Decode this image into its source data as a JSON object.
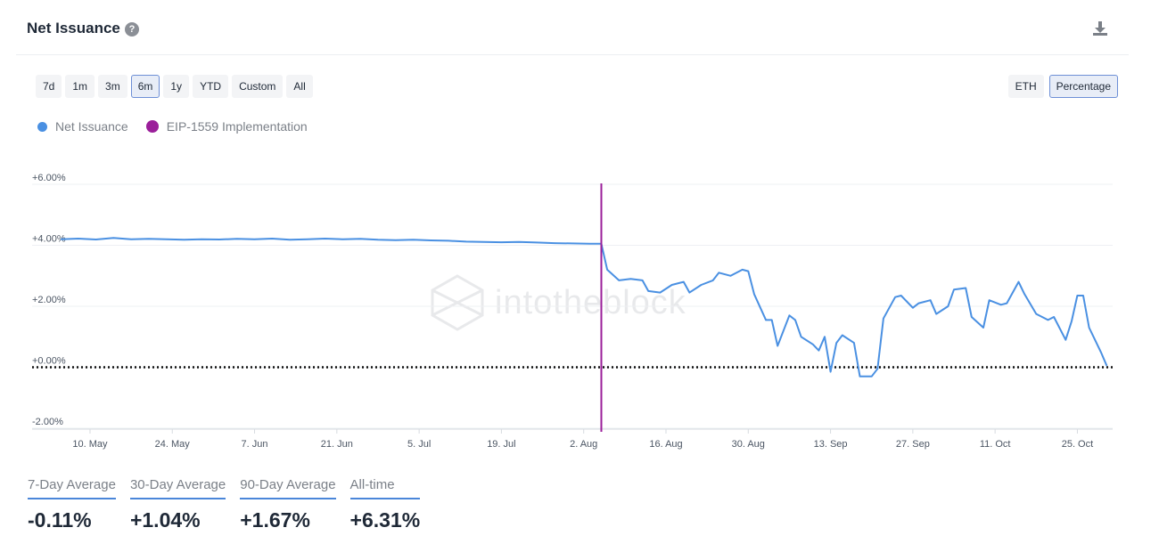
{
  "header": {
    "title": "Net Issuance",
    "help_icon": "question-circle-icon",
    "download_icon": "download-icon"
  },
  "range_buttons": [
    "7d",
    "1m",
    "3m",
    "6m",
    "1y",
    "YTD",
    "Custom",
    "All"
  ],
  "range_selected": "6m",
  "unit_buttons": [
    "ETH",
    "Percentage"
  ],
  "unit_selected": "Percentage",
  "legend": [
    {
      "label": "Net Issuance",
      "color": "#4a90e2"
    },
    {
      "label": "EIP-1559 Implementation",
      "color": "#9b1f9a"
    }
  ],
  "watermark": "intotheblock",
  "stats": [
    {
      "label": "7-Day Average",
      "value": "-0.11%"
    },
    {
      "label": "30-Day Average",
      "value": "+1.04%"
    },
    {
      "label": "90-Day Average",
      "value": "+1.67%"
    },
    {
      "label": "All-time",
      "value": "+6.31%"
    }
  ],
  "chart_data": {
    "type": "line",
    "x_start": "2021-05-05",
    "x_end": "2021-10-31",
    "ylim": [
      -2,
      6
    ],
    "y_ticks": [
      6,
      4,
      2,
      0,
      -2
    ],
    "y_tick_labels": [
      "+6.00%",
      "+4.00%",
      "+2.00%",
      "+0.00%",
      "-2.00%"
    ],
    "x_ticks": [
      "2021-05-10",
      "2021-05-24",
      "2021-06-07",
      "2021-06-21",
      "2021-07-05",
      "2021-07-19",
      "2021-08-02",
      "2021-08-16",
      "2021-08-30",
      "2021-09-13",
      "2021-09-27",
      "2021-10-11",
      "2021-10-25"
    ],
    "x_tick_labels": [
      "10. May",
      "24. May",
      "7. Jun",
      "21. Jun",
      "5. Jul",
      "19. Jul",
      "2. Aug",
      "16. Aug",
      "30. Aug",
      "13. Sep",
      "27. Sep",
      "11. Oct",
      "25. Oct"
    ],
    "zero_line": 0,
    "event_line": {
      "x": "2021-08-05",
      "color": "#9b1f9a"
    },
    "series": [
      {
        "name": "Net Issuance",
        "color": "#4a90e2",
        "points": [
          [
            "2021-05-05",
            4.2
          ],
          [
            "2021-05-08",
            4.22
          ],
          [
            "2021-05-11",
            4.19
          ],
          [
            "2021-05-14",
            4.24
          ],
          [
            "2021-05-17",
            4.2
          ],
          [
            "2021-05-20",
            4.21
          ],
          [
            "2021-05-23",
            4.2
          ],
          [
            "2021-05-26",
            4.18
          ],
          [
            "2021-05-29",
            4.2
          ],
          [
            "2021-06-01",
            4.19
          ],
          [
            "2021-06-04",
            4.21
          ],
          [
            "2021-06-07",
            4.2
          ],
          [
            "2021-06-10",
            4.22
          ],
          [
            "2021-06-13",
            4.18
          ],
          [
            "2021-06-16",
            4.2
          ],
          [
            "2021-06-19",
            4.22
          ],
          [
            "2021-06-22",
            4.2
          ],
          [
            "2021-06-25",
            4.21
          ],
          [
            "2021-06-28",
            4.18
          ],
          [
            "2021-07-01",
            4.17
          ],
          [
            "2021-07-04",
            4.18
          ],
          [
            "2021-07-07",
            4.16
          ],
          [
            "2021-07-10",
            4.15
          ],
          [
            "2021-07-13",
            4.12
          ],
          [
            "2021-07-16",
            4.11
          ],
          [
            "2021-07-19",
            4.1
          ],
          [
            "2021-07-22",
            4.11
          ],
          [
            "2021-07-25",
            4.09
          ],
          [
            "2021-07-28",
            4.07
          ],
          [
            "2021-07-31",
            4.06
          ],
          [
            "2021-08-03",
            4.05
          ],
          [
            "2021-08-05",
            4.05
          ],
          [
            "2021-08-06",
            3.2
          ],
          [
            "2021-08-08",
            2.85
          ],
          [
            "2021-08-10",
            2.9
          ],
          [
            "2021-08-12",
            2.85
          ],
          [
            "2021-08-13",
            2.5
          ],
          [
            "2021-08-15",
            2.45
          ],
          [
            "2021-08-17",
            2.7
          ],
          [
            "2021-08-19",
            2.8
          ],
          [
            "2021-08-20",
            2.45
          ],
          [
            "2021-08-22",
            2.7
          ],
          [
            "2021-08-24",
            2.85
          ],
          [
            "2021-08-25",
            3.1
          ],
          [
            "2021-08-27",
            3.0
          ],
          [
            "2021-08-29",
            3.2
          ],
          [
            "2021-08-30",
            3.15
          ],
          [
            "2021-08-31",
            2.4
          ],
          [
            "2021-09-02",
            1.55
          ],
          [
            "2021-09-03",
            1.55
          ],
          [
            "2021-09-04",
            0.7
          ],
          [
            "2021-09-06",
            1.7
          ],
          [
            "2021-09-07",
            1.55
          ],
          [
            "2021-09-08",
            1.0
          ],
          [
            "2021-09-10",
            0.75
          ],
          [
            "2021-09-11",
            0.55
          ],
          [
            "2021-09-12",
            1.0
          ],
          [
            "2021-09-13",
            -0.15
          ],
          [
            "2021-09-14",
            0.8
          ],
          [
            "2021-09-15",
            1.05
          ],
          [
            "2021-09-17",
            0.8
          ],
          [
            "2021-09-18",
            -0.3
          ],
          [
            "2021-09-20",
            -0.3
          ],
          [
            "2021-09-21",
            -0.05
          ],
          [
            "2021-09-22",
            1.6
          ],
          [
            "2021-09-24",
            2.3
          ],
          [
            "2021-09-25",
            2.35
          ],
          [
            "2021-09-27",
            1.95
          ],
          [
            "2021-09-28",
            2.1
          ],
          [
            "2021-09-30",
            2.2
          ],
          [
            "2021-10-01",
            1.75
          ],
          [
            "2021-10-03",
            2.0
          ],
          [
            "2021-10-04",
            2.55
          ],
          [
            "2021-10-06",
            2.6
          ],
          [
            "2021-10-07",
            1.65
          ],
          [
            "2021-10-09",
            1.3
          ],
          [
            "2021-10-10",
            2.2
          ],
          [
            "2021-10-12",
            2.05
          ],
          [
            "2021-10-13",
            2.1
          ],
          [
            "2021-10-15",
            2.8
          ],
          [
            "2021-10-16",
            2.4
          ],
          [
            "2021-10-18",
            1.75
          ],
          [
            "2021-10-20",
            1.55
          ],
          [
            "2021-10-21",
            1.65
          ],
          [
            "2021-10-23",
            0.9
          ],
          [
            "2021-10-24",
            1.5
          ],
          [
            "2021-10-25",
            2.35
          ],
          [
            "2021-10-26",
            2.35
          ],
          [
            "2021-10-27",
            1.3
          ],
          [
            "2021-10-29",
            0.5
          ],
          [
            "2021-10-30",
            0.05
          ]
        ]
      }
    ]
  }
}
